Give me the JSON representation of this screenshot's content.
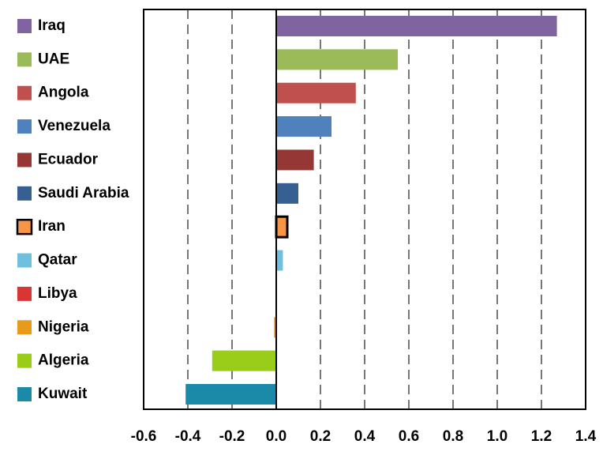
{
  "chart_data": {
    "type": "bar",
    "orientation": "horizontal",
    "categories": [
      "Iraq",
      "UAE",
      "Angola",
      "Venezuela",
      "Ecuador",
      "Saudi Arabia",
      "Iran",
      "Qatar",
      "Libya",
      "Nigeria",
      "Algeria",
      "Kuwait"
    ],
    "values": [
      1.27,
      0.55,
      0.36,
      0.25,
      0.17,
      0.1,
      0.05,
      0.03,
      0.0,
      -0.01,
      -0.29,
      -0.41
    ],
    "colors": [
      "#8064a2",
      "#9bbb59",
      "#c0504d",
      "#4f81bd",
      "#953735",
      "#376092",
      "#f79646",
      "#6fc0e0",
      "#d83535",
      "#e89a1a",
      "#9acd1a",
      "#1a8aa8"
    ],
    "outlined": "Iran",
    "xlim": [
      -0.6,
      1.4
    ],
    "xticks": [
      -0.6,
      -0.4,
      -0.2,
      {
        "value": 0,
        "label": "0.0"
      },
      0.2,
      0.4,
      0.6,
      0.8,
      {
        "value": 1,
        "label": "1.0"
      },
      1.2,
      1.4
    ],
    "grid": true,
    "legend": "left"
  }
}
